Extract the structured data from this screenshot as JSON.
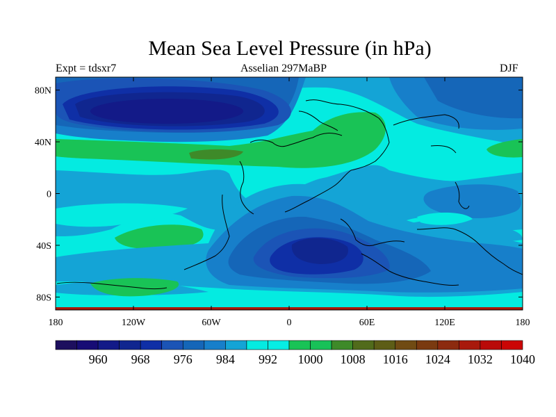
{
  "title": "Mean Sea Level Pressure (in hPa)",
  "subtitle_left": "Expt = tdsxr7",
  "subtitle_center": "Asselian 297MaBP",
  "subtitle_right": "DJF",
  "lat_ticks": [
    {
      "label": "80N",
      "value": 80
    },
    {
      "label": "40N",
      "value": 40
    },
    {
      "label": "0",
      "value": 0
    },
    {
      "label": "40S",
      "value": -40
    },
    {
      "label": "80S",
      "value": -80
    }
  ],
  "lon_ticks": [
    {
      "label": "180",
      "value": -180
    },
    {
      "label": "120W",
      "value": -120
    },
    {
      "label": "60W",
      "value": -60
    },
    {
      "label": "0",
      "value": 0
    },
    {
      "label": "60E",
      "value": 60
    },
    {
      "label": "120E",
      "value": 120
    },
    {
      "label": "180",
      "value": 180
    }
  ],
  "colorbar": {
    "colors": [
      "#1d0f5e",
      "#170c75",
      "#131a88",
      "#10268f",
      "#0f2fa6",
      "#1b54b6",
      "#1566b8",
      "#177fca",
      "#14a4d6",
      "#04ebe1",
      "#06eee4",
      "#19c356",
      "#18c158",
      "#3e8a29",
      "#516b1b",
      "#5d5d16",
      "#704b13",
      "#7a3a10",
      "#8c2b0f",
      "#a8190c",
      "#b90a09",
      "#cb0505"
    ],
    "labels": [
      "960",
      "968",
      "976",
      "984",
      "992",
      "1000",
      "1008",
      "1016",
      "1024",
      "1032",
      "1040"
    ],
    "label_every": 2,
    "label_offset": 1
  },
  "fill_colors": {
    "c984": "#1566b8",
    "c988": "#177fca",
    "c992": "#14a4d6",
    "c996": "#04ebe1",
    "c1004": "#19c356",
    "c1012": "#3e8a29",
    "c968": "#131a88",
    "c972": "#10268f",
    "c976": "#0f2fa6",
    "c980": "#1b54b6",
    "edge": "#a8190c"
  }
}
